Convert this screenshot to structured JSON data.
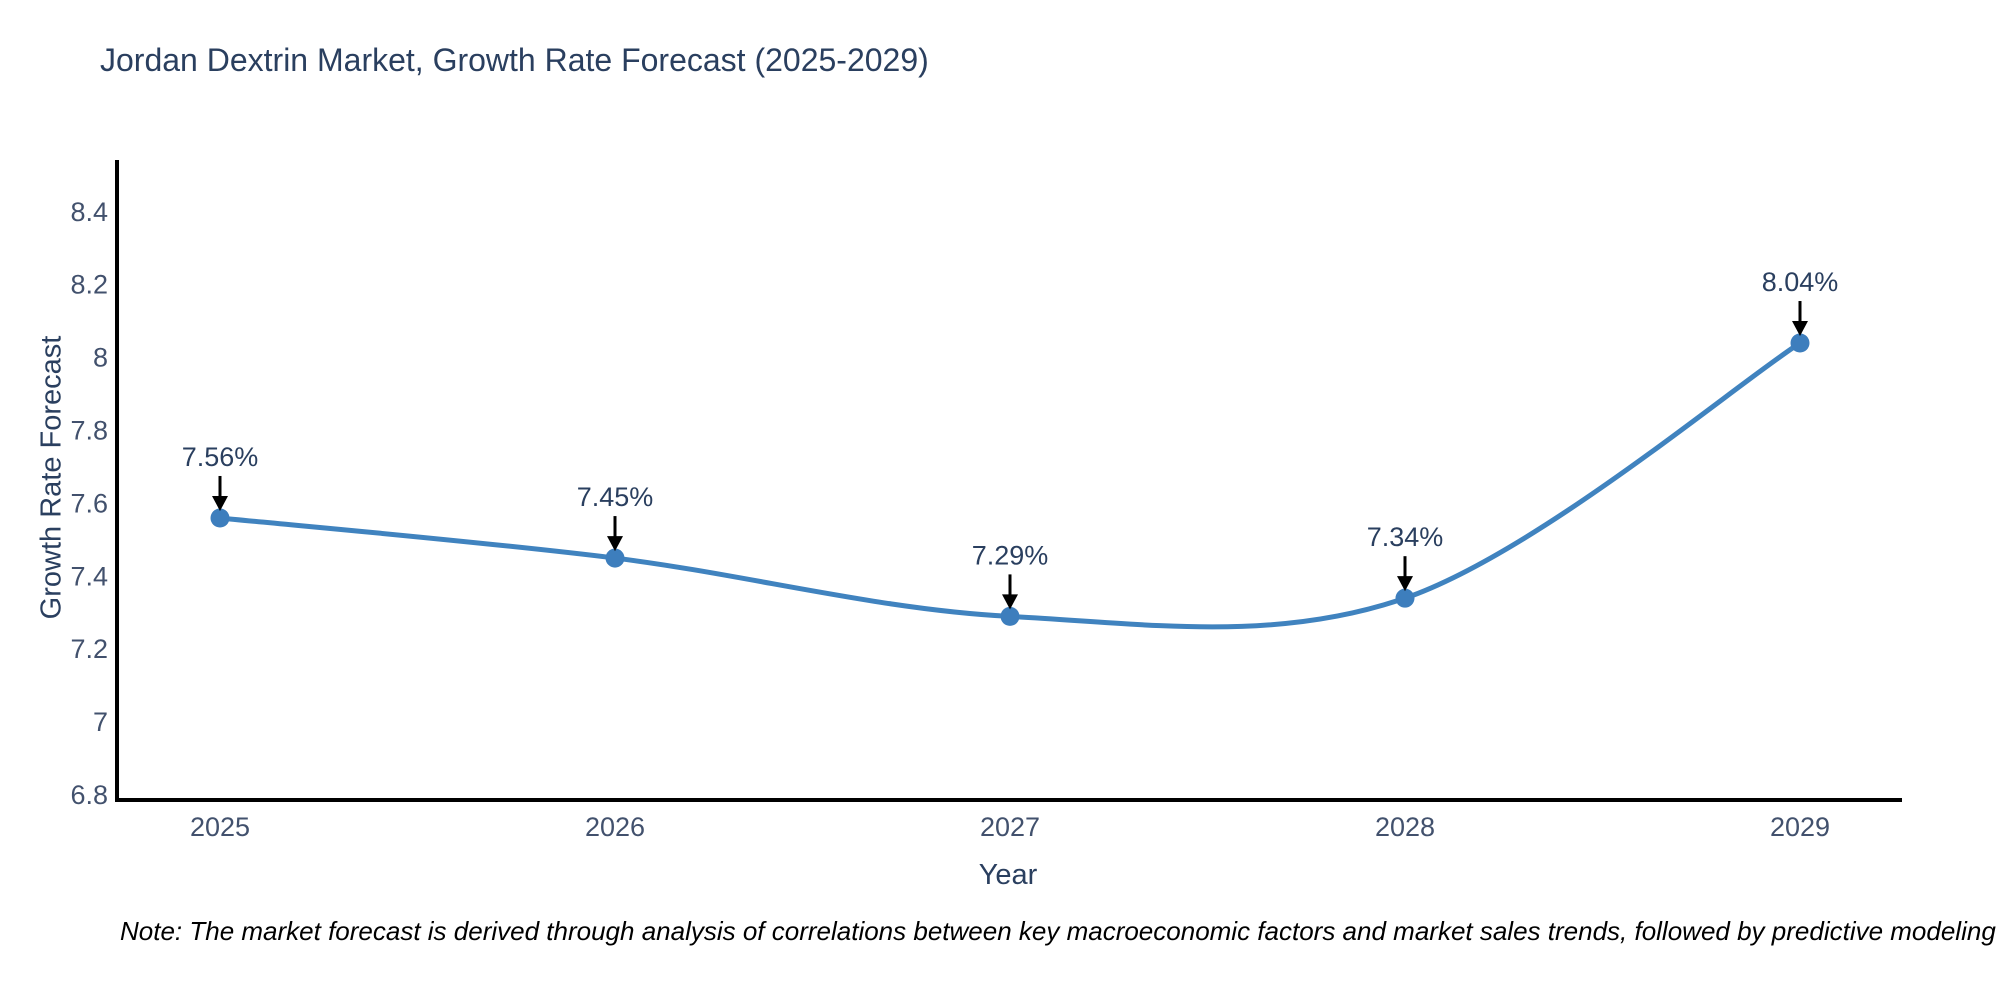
{
  "note": "Note: The market forecast is derived through analysis of correlations between key macroeconomic factors and market sales trends, followed by predictive modeling to project future sales",
  "chart_data": {
    "type": "line",
    "title": "Jordan Dextrin Market, Growth Rate Forecast (2025-2029)",
    "xlabel": "Year",
    "ylabel": "Growth Rate Forecast",
    "x": [
      2025,
      2026,
      2027,
      2028,
      2029
    ],
    "x_tick_labels": [
      "2025",
      "2026",
      "2027",
      "2028",
      "2029"
    ],
    "values": [
      7.56,
      7.45,
      7.29,
      7.34,
      8.04
    ],
    "point_labels": [
      "7.56%",
      "7.45%",
      "7.29%",
      "7.34%",
      "8.04%"
    ],
    "yticks": [
      6.8,
      7.0,
      7.2,
      7.4,
      7.6,
      7.8,
      8.0,
      8.2,
      8.4
    ],
    "ytick_labels": [
      "6.8",
      "7",
      "7.2",
      "7.4",
      "7.6",
      "7.8",
      "8",
      "8.2",
      "8.4"
    ],
    "ylim": [
      6.79,
      8.55
    ],
    "grid": false,
    "legend": "none",
    "line_shape": "spline",
    "colors": {
      "line": "#4083bf",
      "marker": "#3d7ebd",
      "axis": "#000000",
      "arrow": "#000000",
      "title_text": "#2a3f5f",
      "tick_text": "#42516d"
    }
  }
}
